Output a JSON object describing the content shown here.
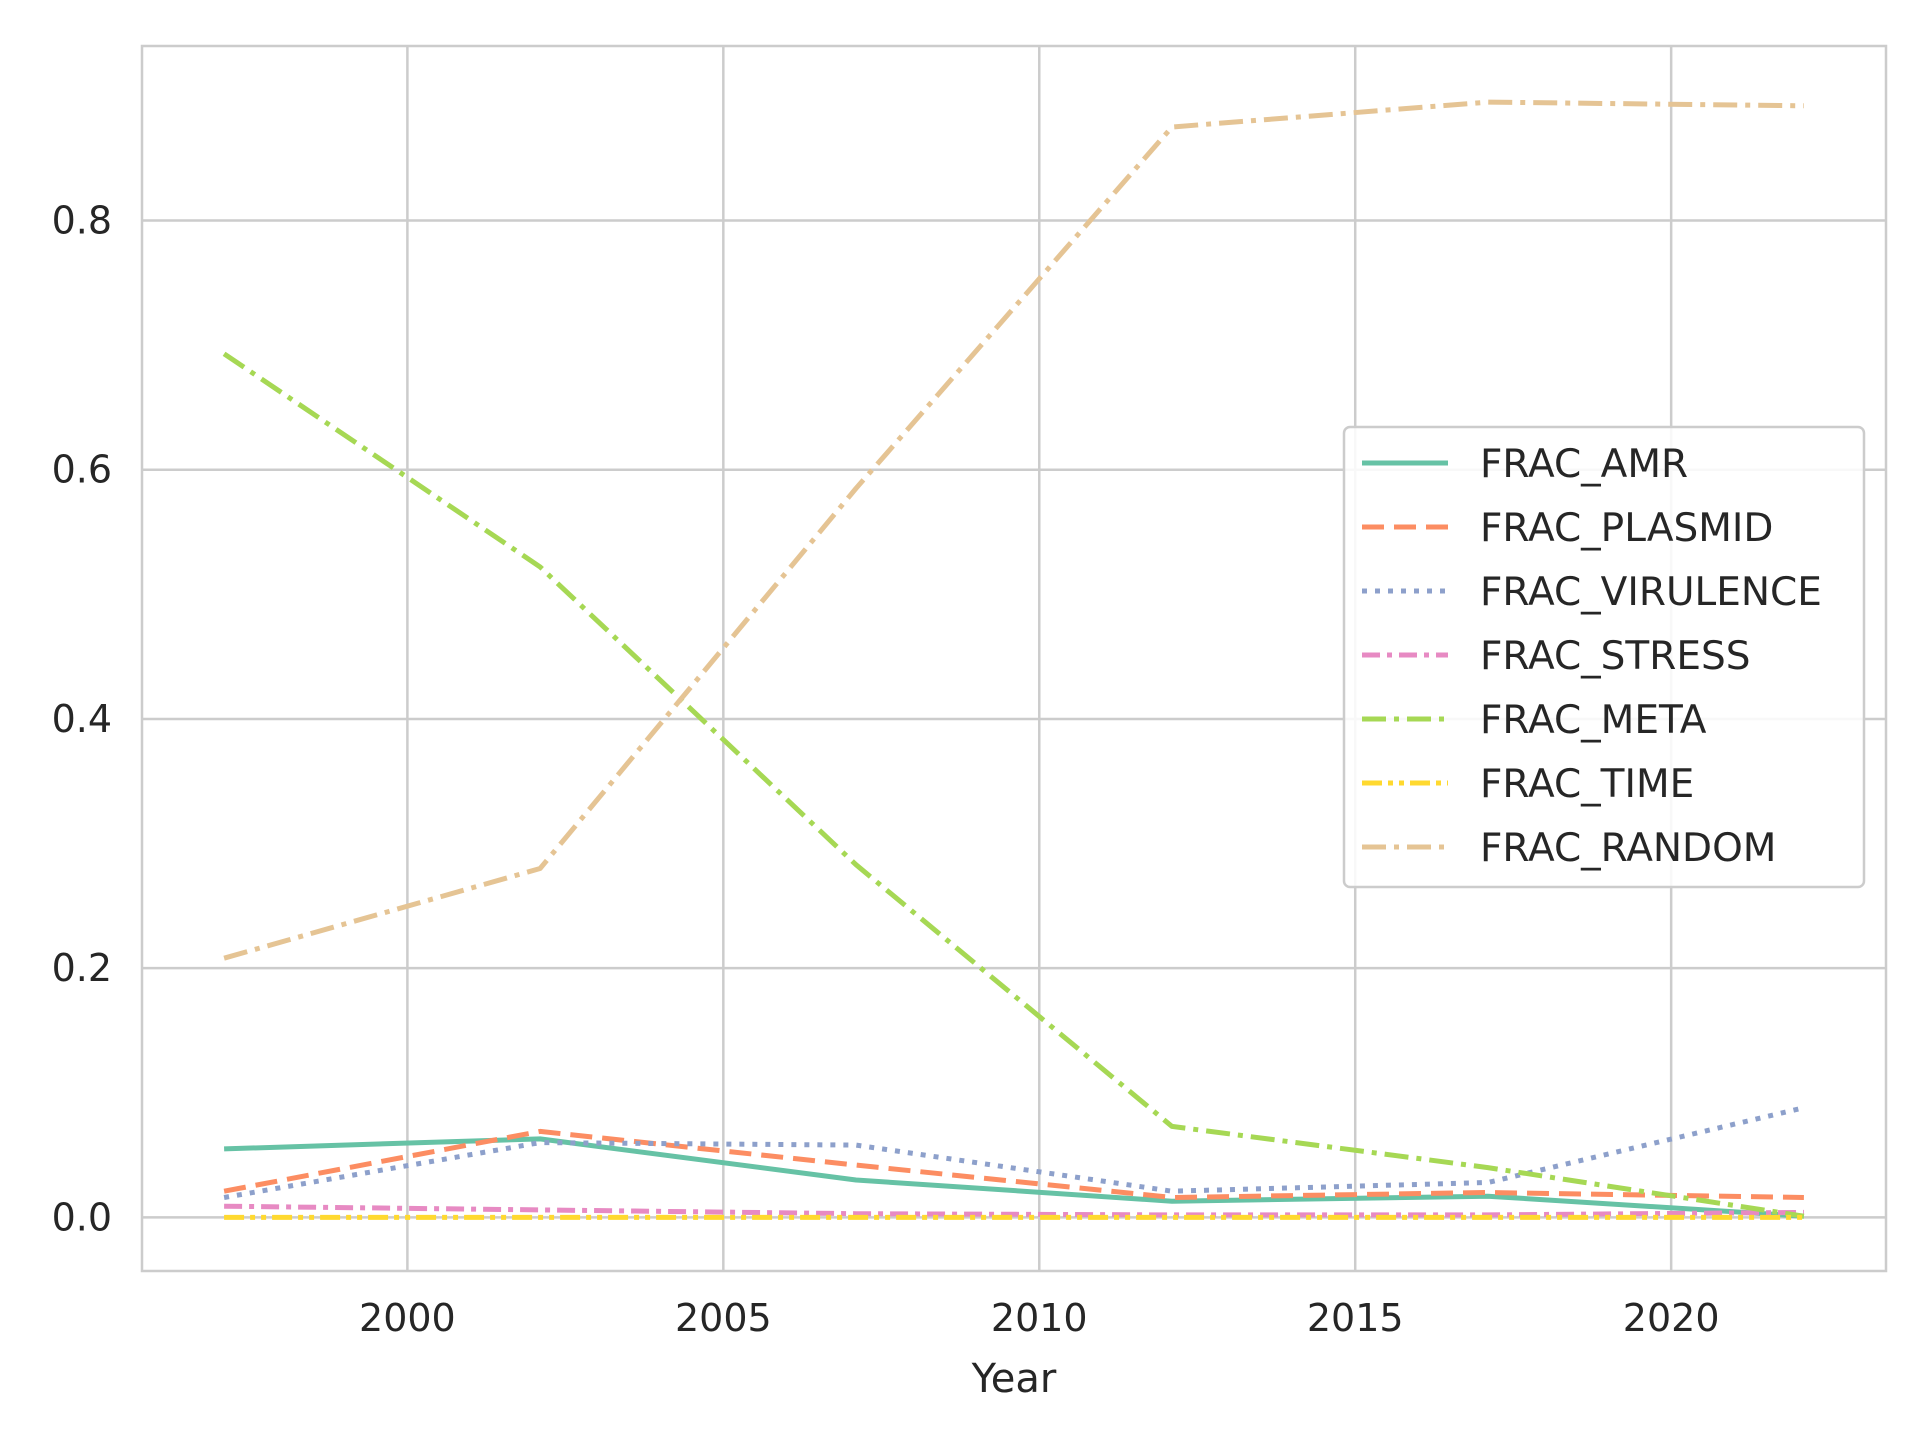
{
  "chart_data": {
    "type": "line",
    "xlabel": "Year",
    "ylabel": "",
    "title": "",
    "xlim": [
      1995.8,
      2023.4
    ],
    "ylim": [
      -0.043,
      0.94
    ],
    "x_ticks": [
      2000,
      2005,
      2010,
      2015,
      2020
    ],
    "y_ticks": [
      0.0,
      0.2,
      0.4,
      0.6,
      0.8
    ],
    "grid": true,
    "legend": "center-right",
    "x": [
      1997.1,
      2002.1,
      2007.1,
      2012.1,
      2017.1,
      2022.1
    ],
    "series": [
      {
        "name": "FRAC_AMR",
        "color": "#66c2a5",
        "dash": "",
        "values": [
          0.055,
          0.063,
          0.03,
          0.013,
          0.017,
          0.001
        ]
      },
      {
        "name": "FRAC_PLASMID",
        "color": "#fc8d62",
        "dash": "22,10",
        "values": [
          0.021,
          0.069,
          0.042,
          0.016,
          0.02,
          0.016
        ]
      },
      {
        "name": "FRAC_VIRULENCE",
        "color": "#8da0cb",
        "dash": "5,8",
        "values": [
          0.016,
          0.06,
          0.058,
          0.021,
          0.028,
          0.088
        ]
      },
      {
        "name": "FRAC_STRESS",
        "color": "#e78ac3",
        "dash": "18,7,5,7",
        "values": [
          0.009,
          0.006,
          0.003,
          0.002,
          0.002,
          0.004
        ]
      },
      {
        "name": "FRAC_META",
        "color": "#a6d854",
        "dash": "24,8,5,8",
        "values": [
          0.693,
          0.522,
          0.283,
          0.073,
          0.04,
          0.001
        ]
      },
      {
        "name": "FRAC_TIME",
        "color": "#ffd92f",
        "dash": "20,6,5,6,5,6",
        "values": [
          0.0,
          0.0,
          0.0,
          0.0,
          0.0,
          0.0
        ]
      },
      {
        "name": "FRAC_RANDOM",
        "color": "#e5c494",
        "dash": "24,8,5,8",
        "values": [
          0.208,
          0.28,
          0.585,
          0.875,
          0.895,
          0.892
        ]
      }
    ]
  }
}
